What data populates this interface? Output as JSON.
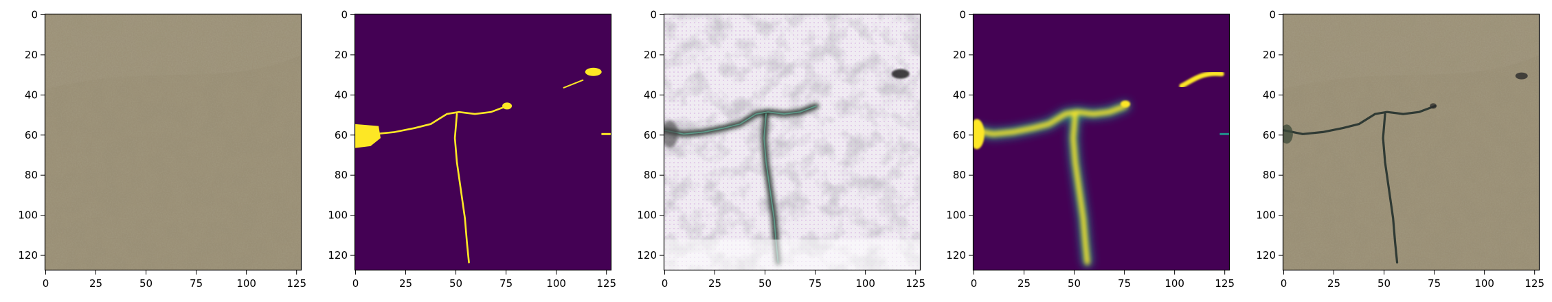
{
  "figure": {
    "panels": [
      {
        "name": "input-photo",
        "kind": "photo-texture"
      },
      {
        "name": "ground-truth-mask",
        "kind": "binary-mask"
      },
      {
        "name": "generated-image",
        "kind": "generated-texture"
      },
      {
        "name": "predicted-mask",
        "kind": "soft-mask"
      },
      {
        "name": "overlay-photo",
        "kind": "photo-overlay"
      }
    ],
    "axes": {
      "x_ticks": [
        "0",
        "25",
        "50",
        "75",
        "100",
        "125"
      ],
      "y_ticks": [
        "0",
        "20",
        "40",
        "60",
        "80",
        "100",
        "120"
      ],
      "x_tick_values": [
        0,
        25,
        50,
        75,
        100,
        125
      ],
      "y_tick_values": [
        0,
        20,
        40,
        60,
        80,
        100,
        120
      ],
      "extent": [
        128,
        128
      ]
    },
    "colors": {
      "mask_bg": "#440154",
      "mask_fg": "#fde725",
      "mask_mid": "#21918c",
      "photo_base": "#9a8f76",
      "photo_light": "#b9b29f",
      "photo_dark": "#6f6448",
      "crack_dark": "#2f3a34",
      "gen_bg": "#f1eef3"
    }
  }
}
